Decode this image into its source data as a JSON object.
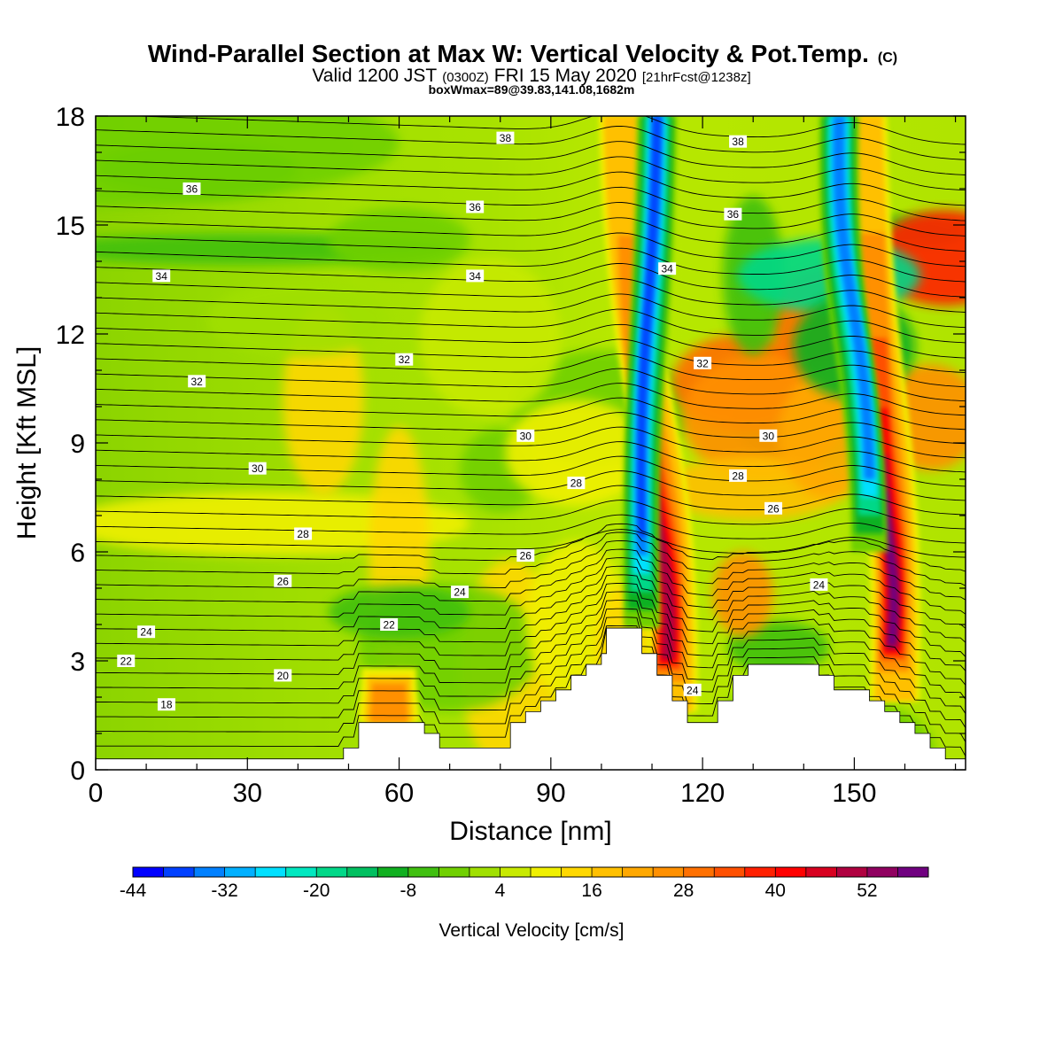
{
  "title": "Wind-Parallel Section at Max W: Vertical Velocity & Pot.Temp.",
  "copyright_mark": "(C)",
  "subtitle": {
    "valid_prefix": "Valid 1200 JST",
    "utc_time": "(0300Z)",
    "date": "FRI 15 May 2020",
    "forecast": "[21hrFcst@1238z]"
  },
  "box_info": "boxWmax=89@39.83,141.08,1682m",
  "chart_data": {
    "type": "heatmap",
    "xlabel": "Distance [nm]",
    "ylabel": "Height [Kft MSL]",
    "xlim": [
      0,
      172
    ],
    "ylim": [
      0,
      18
    ],
    "x_ticks": [
      0,
      30,
      60,
      90,
      120,
      150
    ],
    "y_ticks": [
      0,
      3,
      6,
      9,
      12,
      15,
      18
    ],
    "shaded_field": "Vertical Velocity [cm/s]",
    "colorbar": {
      "label": "Vertical Velocity [cm/s]",
      "boundaries": [
        -44,
        -40,
        -36,
        -32,
        -28,
        -24,
        -20,
        -16,
        -12,
        -8,
        -4,
        0,
        4,
        8,
        12,
        16,
        20,
        24,
        28,
        32,
        36,
        40,
        44,
        48,
        52,
        56,
        60
      ],
      "tick_labels": [
        -44,
        -32,
        -20,
        -8,
        4,
        16,
        28,
        40,
        52
      ],
      "colors": [
        "#0000ff",
        "#0040ff",
        "#0080ff",
        "#00b0ff",
        "#00e0ff",
        "#00e8c0",
        "#00d888",
        "#00c060",
        "#10b020",
        "#40c010",
        "#70d000",
        "#a0e000",
        "#c8ea00",
        "#f0f000",
        "#ffd800",
        "#ffc000",
        "#ffa800",
        "#ff9000",
        "#ff7000",
        "#ff5000",
        "#ff2000",
        "#ff0000",
        "#d80020",
        "#b00040",
        "#900060",
        "#700080"
      ]
    },
    "contour_field": "Potential temperature (labelled contours)",
    "contour_labels": [
      {
        "x": 14,
        "y": 1.8,
        "label": "18"
      },
      {
        "x": 37,
        "y": 2.6,
        "label": "20"
      },
      {
        "x": 6,
        "y": 3.0,
        "label": "22"
      },
      {
        "x": 58,
        "y": 4.0,
        "label": "22"
      },
      {
        "x": 10,
        "y": 3.8,
        "label": "24"
      },
      {
        "x": 72,
        "y": 4.9,
        "label": "24"
      },
      {
        "x": 143,
        "y": 5.1,
        "label": "24"
      },
      {
        "x": 118,
        "y": 2.2,
        "label": "24"
      },
      {
        "x": 37,
        "y": 5.2,
        "label": "26"
      },
      {
        "x": 85,
        "y": 5.9,
        "label": "26"
      },
      {
        "x": 134,
        "y": 7.2,
        "label": "26"
      },
      {
        "x": 41,
        "y": 6.5,
        "label": "28"
      },
      {
        "x": 95,
        "y": 7.9,
        "label": "28"
      },
      {
        "x": 127,
        "y": 8.1,
        "label": "28"
      },
      {
        "x": 32,
        "y": 8.3,
        "label": "30"
      },
      {
        "x": 85,
        "y": 9.2,
        "label": "30"
      },
      {
        "x": 133,
        "y": 9.2,
        "label": "30"
      },
      {
        "x": 20,
        "y": 10.7,
        "label": "32"
      },
      {
        "x": 61,
        "y": 11.3,
        "label": "32"
      },
      {
        "x": 120,
        "y": 11.2,
        "label": "32"
      },
      {
        "x": 13,
        "y": 13.6,
        "label": "34"
      },
      {
        "x": 75,
        "y": 13.6,
        "label": "34"
      },
      {
        "x": 113,
        "y": 13.8,
        "label": "34"
      },
      {
        "x": 19,
        "y": 16.0,
        "label": "36"
      },
      {
        "x": 75,
        "y": 15.5,
        "label": "36"
      },
      {
        "x": 126,
        "y": 15.3,
        "label": "36"
      },
      {
        "x": 81,
        "y": 17.4,
        "label": "38"
      },
      {
        "x": 127,
        "y": 17.3,
        "label": "38"
      }
    ],
    "terrain": [
      [
        0,
        0.3
      ],
      [
        49,
        0.3
      ],
      [
        49,
        0.6
      ],
      [
        52,
        0.6
      ],
      [
        52,
        1.3
      ],
      [
        65,
        1.3
      ],
      [
        65,
        1.0
      ],
      [
        68,
        1.0
      ],
      [
        68,
        0.6
      ],
      [
        82,
        0.6
      ],
      [
        82,
        1.3
      ],
      [
        85,
        1.3
      ],
      [
        85,
        1.6
      ],
      [
        88,
        1.6
      ],
      [
        88,
        1.9
      ],
      [
        91,
        1.9
      ],
      [
        91,
        2.2
      ],
      [
        94,
        2.2
      ],
      [
        94,
        2.6
      ],
      [
        97,
        2.6
      ],
      [
        97,
        2.9
      ],
      [
        100,
        2.9
      ],
      [
        100,
        3.2
      ],
      [
        101,
        3.2
      ],
      [
        101,
        3.9
      ],
      [
        108,
        3.9
      ],
      [
        108,
        3.2
      ],
      [
        111,
        3.2
      ],
      [
        111,
        2.6
      ],
      [
        114,
        2.6
      ],
      [
        114,
        1.9
      ],
      [
        117,
        1.9
      ],
      [
        117,
        1.3
      ],
      [
        123,
        1.3
      ],
      [
        123,
        1.9
      ],
      [
        126,
        1.9
      ],
      [
        126,
        2.6
      ],
      [
        129,
        2.6
      ],
      [
        129,
        2.9
      ],
      [
        143,
        2.9
      ],
      [
        143,
        2.6
      ],
      [
        146,
        2.6
      ],
      [
        146,
        2.2
      ],
      [
        153,
        2.2
      ],
      [
        153,
        1.9
      ],
      [
        156,
        1.9
      ],
      [
        156,
        1.6
      ],
      [
        159,
        1.6
      ],
      [
        159,
        1.3
      ],
      [
        162,
        1.3
      ],
      [
        162,
        1.0
      ],
      [
        165,
        1.0
      ],
      [
        165,
        0.6
      ],
      [
        168,
        0.6
      ],
      [
        168,
        0.3
      ],
      [
        172,
        0.3
      ],
      [
        172,
        0
      ]
    ],
    "updraft_bands": [
      {
        "x_bottom": 114,
        "x_top": 104,
        "z_bottom": 1.6,
        "z_top": 18,
        "peak_cm_s": 52,
        "peak_height_kft": 5.2
      },
      {
        "x_bottom": 158,
        "x_top": 152,
        "z_bottom": 1.9,
        "z_top": 18,
        "peak_cm_s": 56,
        "peak_height_kft": 4.5
      },
      {
        "x_bottom": 58,
        "x_top": 58,
        "z_bottom": 1.3,
        "z_top": 2.8,
        "peak_cm_s": 24,
        "peak_height_kft": 1.8
      }
    ],
    "downdraft_bands": [
      {
        "x_bottom": 108,
        "x_top": 111,
        "z_bottom": 3.9,
        "z_top": 18,
        "min_cm_s": -40
      },
      {
        "x_bottom": 153,
        "x_top": 147,
        "z_bottom": 6,
        "z_top": 18,
        "min_cm_s": -36
      }
    ],
    "grid": false
  }
}
